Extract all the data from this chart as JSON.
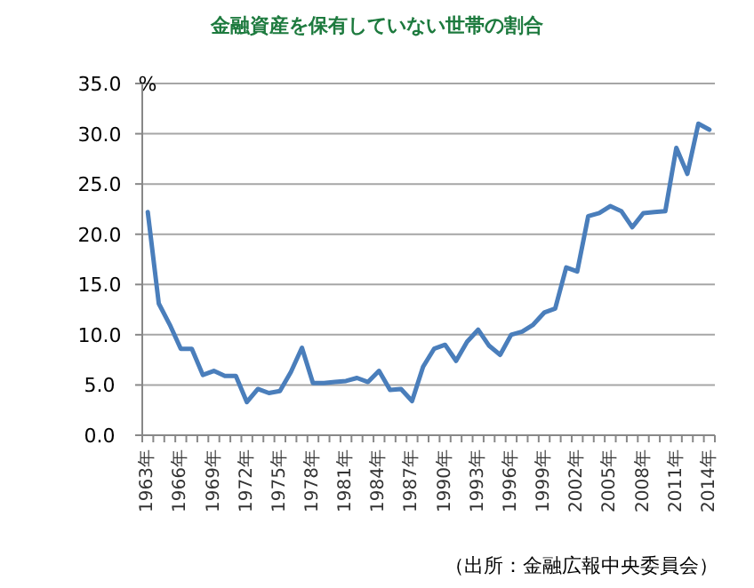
{
  "chart_data": {
    "type": "line",
    "title": "金融資産を保有していない世帯の割合",
    "ylabel": "%",
    "categories": [
      "1963年",
      null,
      null,
      "1966年",
      null,
      null,
      "1969年",
      null,
      null,
      "1972年",
      null,
      null,
      "1975年",
      null,
      null,
      "1978年",
      null,
      null,
      "1981年",
      null,
      null,
      "1984年",
      null,
      null,
      "1987年",
      null,
      null,
      "1990年",
      null,
      null,
      "1993年",
      null,
      null,
      "1996年",
      null,
      null,
      "1999年",
      null,
      null,
      "2002年",
      null,
      null,
      "2005年",
      null,
      null,
      "2008年",
      null,
      null,
      "2011年",
      null,
      null,
      "2014年"
    ],
    "series": [
      {
        "color": "#4a7ebb",
        "values": [
          22.2,
          13.1,
          11.0,
          8.6,
          8.6,
          6.0,
          6.4,
          5.9,
          5.9,
          3.3,
          4.6,
          4.2,
          4.4,
          6.3,
          8.7,
          5.2,
          5.2,
          5.3,
          5.4,
          5.7,
          5.3,
          6.4,
          4.5,
          4.6,
          3.4,
          6.8,
          8.6,
          9.0,
          7.4,
          9.3,
          10.5,
          8.9,
          8.0,
          10.0,
          10.3,
          11.0,
          12.2,
          12.6,
          16.7,
          16.3,
          21.8,
          22.1,
          22.8,
          22.3,
          20.7,
          22.1,
          22.2,
          22.3,
          28.6,
          26.0,
          31.0,
          30.4
        ]
      }
    ],
    "ylim": [
      0,
      35
    ],
    "yticks": [
      {
        "value": 0,
        "label": "0.0"
      },
      {
        "value": 5,
        "label": "5.0"
      },
      {
        "value": 10,
        "label": "10.0"
      },
      {
        "value": 15,
        "label": "15.0"
      },
      {
        "value": 20,
        "label": "20.0"
      },
      {
        "value": 25,
        "label": "25.0"
      },
      {
        "value": 30,
        "label": "30.0"
      },
      {
        "value": 35,
        "label": "35.0"
      }
    ],
    "grid": "y",
    "annotations": [
      "（出所：金融広報中央委員会）"
    ]
  }
}
